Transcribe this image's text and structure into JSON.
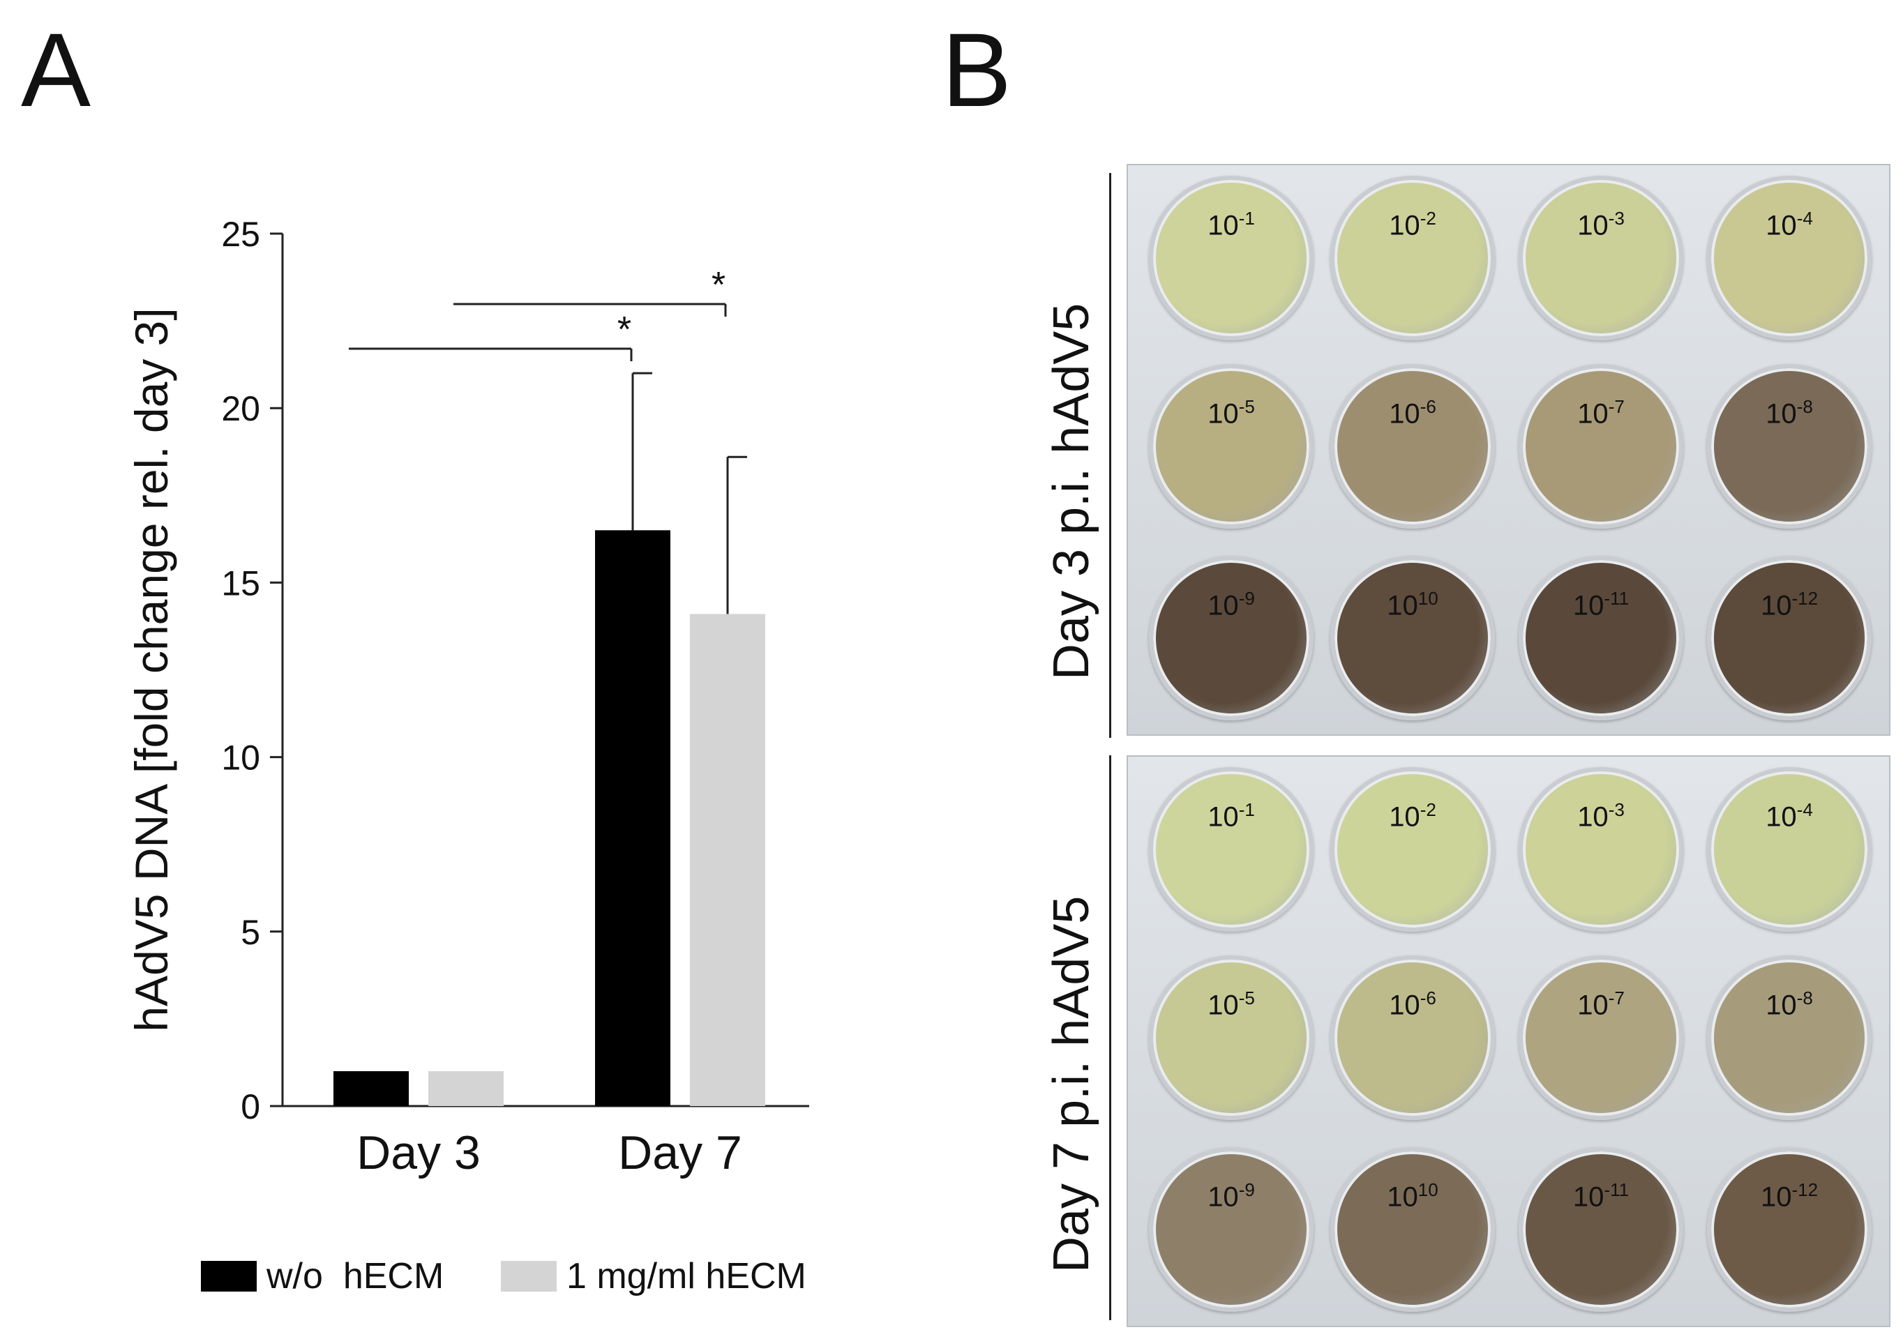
{
  "panels": {
    "a": "A",
    "b": "B"
  },
  "chart_data": {
    "type": "bar",
    "ylabel": "hAdV5 DNA [fold change rel. day 3]",
    "xlabel": "",
    "categories": [
      "Day 3",
      "Day 7"
    ],
    "ylim": [
      0,
      25
    ],
    "yticks": [
      0,
      5,
      10,
      15,
      20,
      25
    ],
    "series": [
      {
        "name": "w/o  hECM",
        "color": "#000000",
        "values": [
          1.0,
          16.5
        ],
        "errors": [
          0,
          4.5
        ]
      },
      {
        "name": "1 mg/ml hECM",
        "color": "#d4d4d4",
        "values": [
          1.0,
          14.1
        ],
        "errors": [
          0,
          4.5
        ]
      }
    ],
    "significance": [
      {
        "label": "*",
        "from": "Day 3",
        "to": "w/o  hECM Day 7"
      },
      {
        "label": "*",
        "from": "Day 3",
        "to": "1 mg/ml hECM Day 7"
      }
    ],
    "grid": false,
    "legend": "bottom"
  },
  "plates": [
    {
      "label": "Day 3 p.i. hAdV5",
      "wells": [
        {
          "exp": "-1",
          "color": "#cdd39a"
        },
        {
          "exp": "-2",
          "color": "#ccd19a"
        },
        {
          "exp": "-3",
          "color": "#cbcf98"
        },
        {
          "exp": "-4",
          "color": "#c9c893"
        },
        {
          "exp": "-5",
          "color": "#b7ae82"
        },
        {
          "exp": "-6",
          "color": "#9e8e70"
        },
        {
          "exp": "-7",
          "color": "#a89a76"
        },
        {
          "exp": "-8",
          "color": "#7a6a57"
        },
        {
          "exp": "-9",
          "color": "#5b4a3b"
        },
        {
          "exp": "10",
          "color": "#5e4c3d"
        },
        {
          "exp": "-11",
          "color": "#5a493b"
        },
        {
          "exp": "-12",
          "color": "#5c4a3a"
        }
      ]
    },
    {
      "label": "Day 7 p.i. hAdV5",
      "wells": [
        {
          "exp": "-1",
          "color": "#cdd59c"
        },
        {
          "exp": "-2",
          "color": "#cdd49a"
        },
        {
          "exp": "-3",
          "color": "#ccd298"
        },
        {
          "exp": "-4",
          "color": "#c9d199"
        },
        {
          "exp": "-5",
          "color": "#c6c994"
        },
        {
          "exp": "-6",
          "color": "#bdbb8b"
        },
        {
          "exp": "-7",
          "color": "#aea480"
        },
        {
          "exp": "-8",
          "color": "#a69c7c"
        },
        {
          "exp": "-9",
          "color": "#8e7f68"
        },
        {
          "exp": "10",
          "color": "#7c6b57"
        },
        {
          "exp": "-11",
          "color": "#6a5846"
        },
        {
          "exp": "-12",
          "color": "#6d5b48"
        }
      ]
    }
  ],
  "well_base": "10"
}
